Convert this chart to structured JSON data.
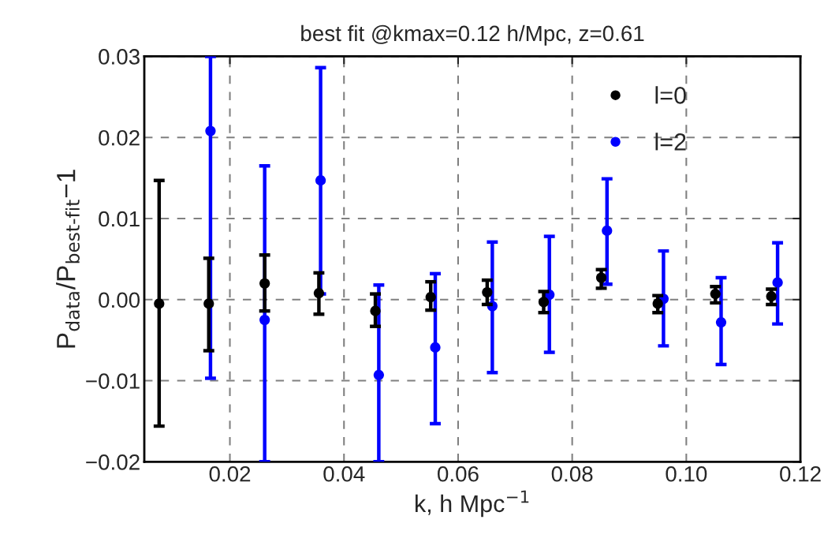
{
  "chart_data": {
    "type": "scatter",
    "title": "best fit @kmax=0.12 h/Mpc, z=0.61",
    "xlabel": "k, h Mpc$^{−1}$",
    "ylabel": "P$_{data}$/P$_{best-fit}$−1",
    "xlim": [
      0.005,
      0.12
    ],
    "xticks": [
      {
        "value": 0.02,
        "label": "0.02"
      },
      {
        "value": 0.04,
        "label": "0.04"
      },
      {
        "value": 0.06,
        "label": "0.06"
      },
      {
        "value": 0.08,
        "label": "0.08"
      },
      {
        "value": 0.1,
        "label": "0.10"
      },
      {
        "value": 0.12,
        "label": "0.12"
      }
    ],
    "ylim": [
      -0.02,
      0.03
    ],
    "yticks": [
      {
        "value": -0.02,
        "label": "−0.02"
      },
      {
        "value": -0.01,
        "label": "−0.01"
      },
      {
        "value": 0,
        "label": "0.00"
      },
      {
        "value": 0.01,
        "label": "0.01"
      },
      {
        "value": 0.02,
        "label": "0.02"
      },
      {
        "value": 0.03,
        "label": "0.03"
      }
    ],
    "grid": true,
    "legend": "top right",
    "marker": "circle",
    "series": [
      {
        "name": "l=0",
        "color": "#000000",
        "x": [
          0.0076,
          0.0163,
          0.0261,
          0.0356,
          0.0455,
          0.0552,
          0.0651,
          0.075,
          0.0851,
          0.095,
          0.1051,
          0.1149
        ],
        "values": [
          -0.0005,
          -0.0005,
          0.002,
          0.0008,
          -0.0014,
          0.0003,
          0.0009,
          -0.0003,
          0.0027,
          -0.0005,
          0.0007,
          0.0004
        ],
        "errors": [
          [
            -0.0156,
            0.0147
          ],
          [
            -0.0063,
            0.0051
          ],
          [
            -0.0014,
            0.0055
          ],
          [
            -0.0018,
            0.0033
          ],
          [
            -0.0033,
            0.0007
          ],
          [
            -0.0013,
            0.0022
          ],
          [
            -0.0006,
            0.0024
          ],
          [
            -0.0016,
            0.001
          ],
          [
            0.0014,
            0.0037
          ],
          [
            -0.0016,
            0.0005
          ],
          [
            -0.0004,
            0.0016
          ],
          [
            -0.0006,
            0.0013
          ]
        ]
      },
      {
        "name": "l=2",
        "color": "#0000ff",
        "x": [
          0.0166,
          0.0261,
          0.0359,
          0.0461,
          0.056,
          0.066,
          0.076,
          0.0861,
          0.096,
          0.1061,
          0.116
        ],
        "values": [
          0.0208,
          -0.0025,
          0.0147,
          -0.0093,
          -0.0059,
          -0.0008,
          0.0006,
          0.0085,
          0.0001,
          -0.0028,
          0.0021
        ],
        "errors": [
          [
            -0.0097,
            0.03
          ],
          [
            -0.02,
            0.0165
          ],
          [
            0.0007,
            0.0286
          ],
          [
            -0.02,
            0.0018
          ],
          [
            -0.0153,
            0.0032
          ],
          [
            -0.009,
            0.0071
          ],
          [
            -0.0065,
            0.0078
          ],
          [
            0.0019,
            0.0149
          ],
          [
            -0.0057,
            0.006
          ],
          [
            -0.008,
            0.0027
          ],
          [
            -0.003,
            0.007
          ]
        ]
      }
    ]
  }
}
